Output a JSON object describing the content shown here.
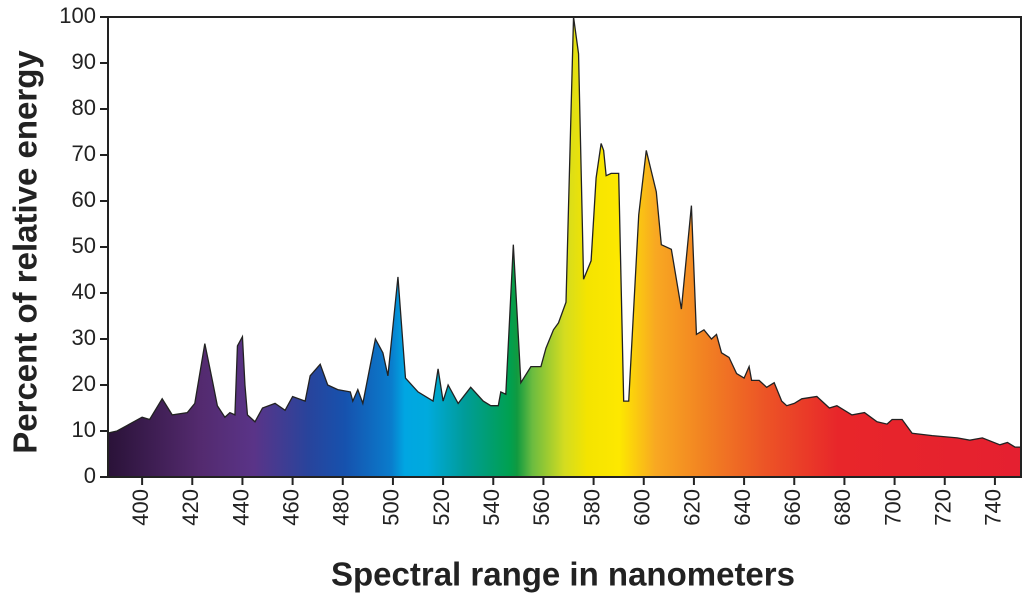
{
  "chart_data": {
    "type": "area",
    "xlabel": "Spectral range in nanometers",
    "ylabel": "Percent of relative energy",
    "x": [
      386,
      390,
      395,
      400,
      403,
      408,
      412,
      418,
      421,
      425,
      428,
      430,
      433,
      435,
      437,
      438,
      440,
      441,
      442,
      445,
      448,
      453,
      457,
      460,
      465,
      467,
      471,
      474,
      478,
      483,
      484,
      486,
      488,
      493,
      496,
      498,
      502,
      505,
      510,
      516,
      518,
      520,
      522,
      526,
      531,
      536,
      539,
      542,
      543,
      545,
      548,
      551,
      555,
      559,
      561,
      564,
      566,
      569,
      572,
      574,
      576,
      579,
      581,
      583,
      584,
      585,
      587,
      590,
      592,
      594,
      598,
      601,
      605,
      607,
      611,
      615,
      619,
      621,
      624,
      627,
      629,
      631,
      634,
      637,
      640,
      642,
      643,
      646,
      649,
      652,
      655,
      657,
      660,
      663,
      669,
      674,
      677,
      683,
      688,
      693,
      697,
      699,
      703,
      707,
      715,
      725,
      730,
      735,
      742,
      745,
      748,
      750
    ],
    "values": [
      9.5,
      10,
      11.5,
      13,
      12.5,
      17,
      13.5,
      14,
      16,
      29,
      21,
      15.5,
      13,
      14,
      13.5,
      28.5,
      30.5,
      20,
      13.5,
      12,
      15,
      16,
      14.5,
      17.5,
      16.5,
      22,
      24.5,
      20,
      19,
      18.5,
      16.5,
      19,
      16,
      30,
      27,
      22,
      43.5,
      21.5,
      18.5,
      16.5,
      23.5,
      16.5,
      20,
      16,
      19.5,
      16.5,
      15.5,
      15.5,
      18.5,
      18,
      50.5,
      20.5,
      24,
      24,
      28,
      32,
      33.5,
      38,
      100,
      92,
      43,
      47,
      65,
      72.5,
      71,
      65.5,
      66,
      66,
      16.5,
      16.5,
      57,
      71,
      62,
      50.5,
      49.5,
      36.5,
      59,
      31,
      32,
      30,
      31,
      27,
      26,
      22.5,
      21.5,
      24,
      21,
      21,
      19.5,
      20.5,
      16.5,
      15.5,
      16,
      17,
      17.5,
      15,
      15.5,
      13.5,
      14,
      12,
      11.5,
      12.5,
      12.5,
      9.5,
      9,
      8.5,
      8,
      8.5,
      7,
      7.5,
      6.5,
      6.5
    ],
    "xlim": [
      386.4,
      750.4
    ],
    "xticks": [
      400,
      420,
      440,
      460,
      480,
      500,
      520,
      540,
      560,
      580,
      600,
      620,
      640,
      660,
      680,
      700,
      720,
      740
    ],
    "ylim": [
      0,
      100
    ],
    "yticks": [
      0,
      10,
      20,
      30,
      40,
      50,
      60,
      70,
      80,
      90,
      100
    ],
    "line_color": "#222222"
  }
}
